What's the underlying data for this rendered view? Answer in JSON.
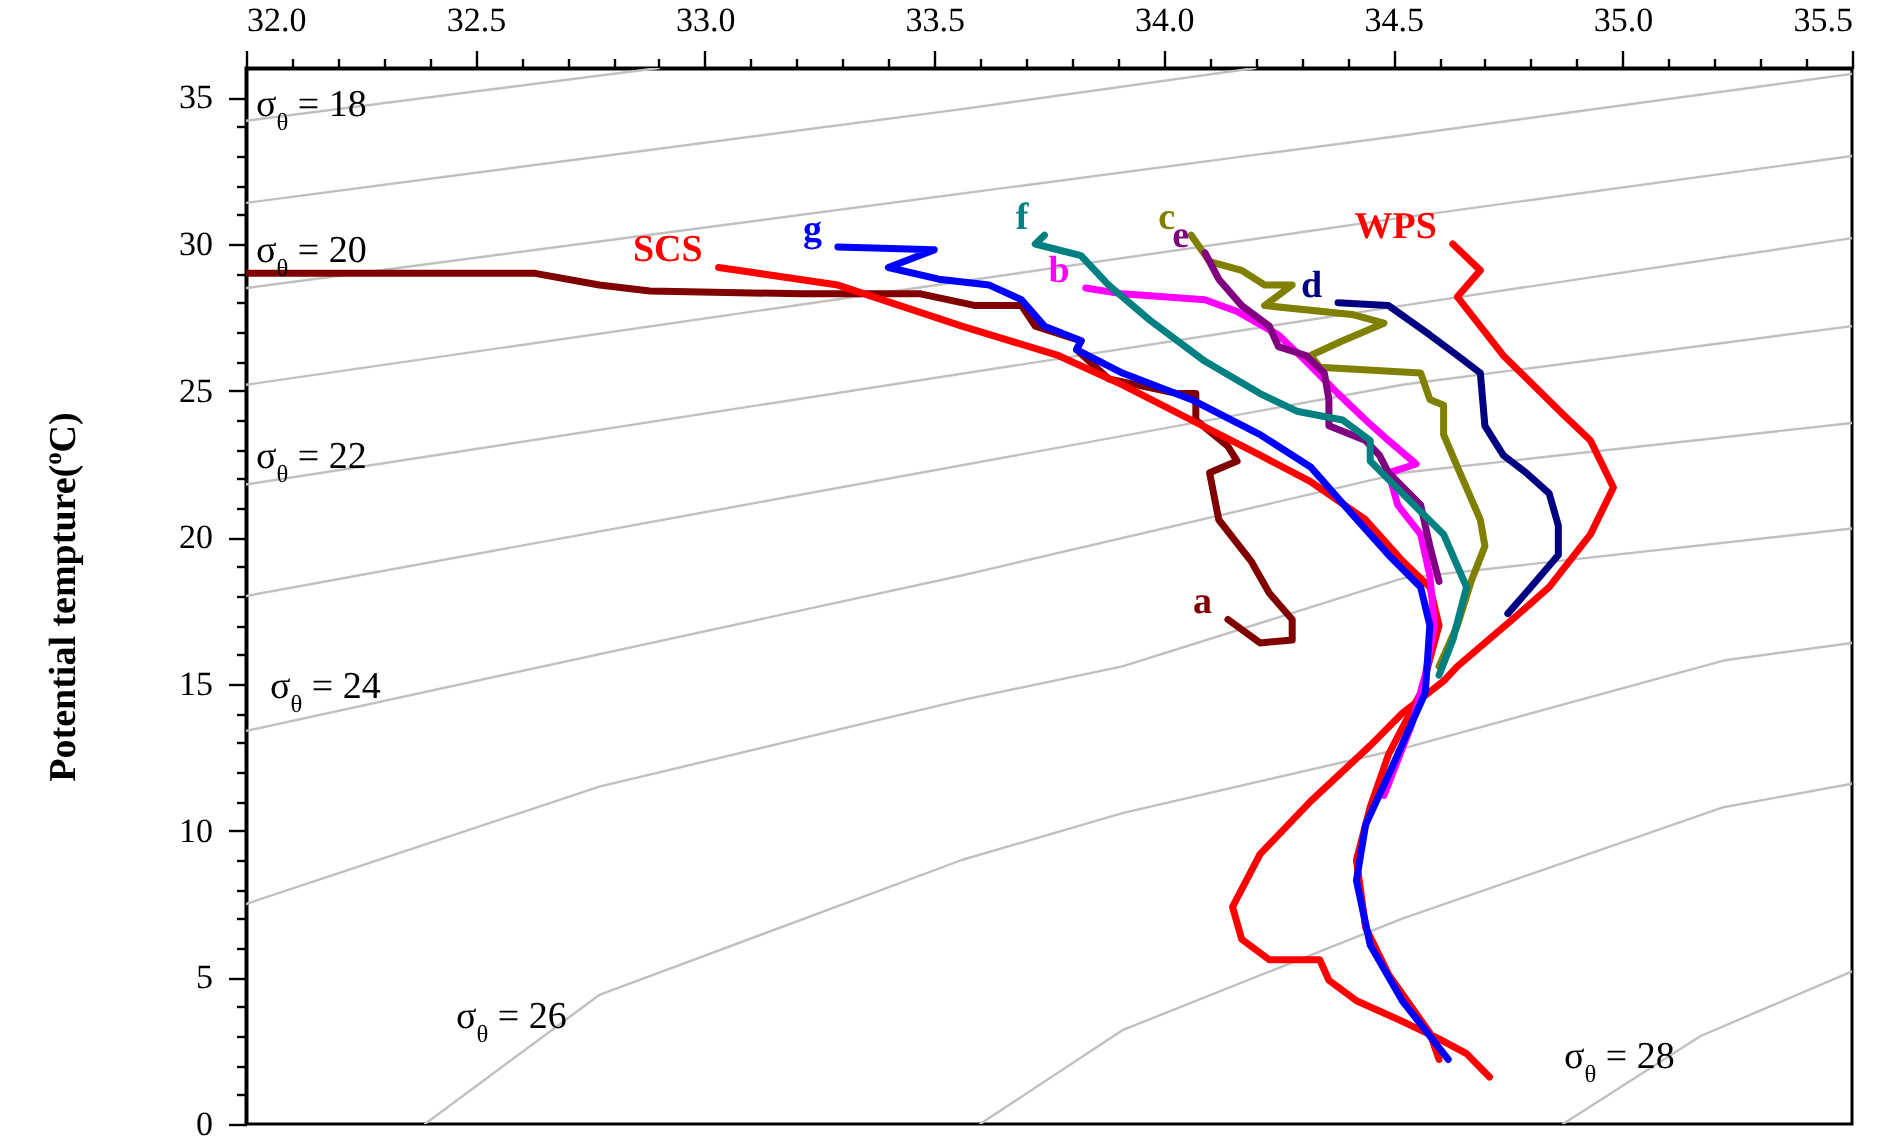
{
  "chart_data": {
    "type": "line",
    "ylabel": "Potential tempture($^{o}$C)",
    "xlim": [
      32,
      35.5
    ],
    "xticks": [
      {
        "value": 32,
        "label": "32.0"
      },
      {
        "value": 32.1,
        "label": null
      },
      {
        "value": 32.2,
        "label": null
      },
      {
        "value": 32.3,
        "label": null
      },
      {
        "value": 32.4,
        "label": null
      },
      {
        "value": 32.5,
        "label": "32.5"
      },
      {
        "value": 32.6,
        "label": null
      },
      {
        "value": 32.7,
        "label": null
      },
      {
        "value": 32.8,
        "label": null
      },
      {
        "value": 32.9,
        "label": null
      },
      {
        "value": 33,
        "label": "33.0"
      },
      {
        "value": 33.1,
        "label": null
      },
      {
        "value": 33.2,
        "label": null
      },
      {
        "value": 33.3,
        "label": null
      },
      {
        "value": 33.4,
        "label": null
      },
      {
        "value": 33.5,
        "label": "33.5"
      },
      {
        "value": 33.6,
        "label": null
      },
      {
        "value": 33.7,
        "label": null
      },
      {
        "value": 33.8,
        "label": null
      },
      {
        "value": 33.9,
        "label": null
      },
      {
        "value": 34,
        "label": "34.0"
      },
      {
        "value": 34.1,
        "label": null
      },
      {
        "value": 34.2,
        "label": null
      },
      {
        "value": 34.3,
        "label": null
      },
      {
        "value": 34.4,
        "label": null
      },
      {
        "value": 34.5,
        "label": "34.5"
      },
      {
        "value": 34.6,
        "label": null
      },
      {
        "value": 34.7,
        "label": null
      },
      {
        "value": 34.8,
        "label": null
      },
      {
        "value": 34.9,
        "label": null
      },
      {
        "value": 35,
        "label": "35.0"
      },
      {
        "value": 35.1,
        "label": null
      },
      {
        "value": 35.2,
        "label": null
      },
      {
        "value": 35.3,
        "label": null
      },
      {
        "value": 35.4,
        "label": null
      },
      {
        "value": 35.5,
        "label": "35.5"
      }
    ],
    "ylim": [
      0,
      36
    ],
    "yticks": [
      0,
      {
        "value": 1,
        "label": null
      },
      {
        "value": 2,
        "label": null
      },
      {
        "value": 3,
        "label": null
      },
      {
        "value": 4,
        "label": null
      },
      5,
      {
        "value": 6,
        "label": null
      },
      {
        "value": 7,
        "label": null
      },
      {
        "value": 8,
        "label": null
      },
      {
        "value": 9,
        "label": null
      },
      10,
      {
        "value": 11,
        "label": null
      },
      {
        "value": 12,
        "label": null
      },
      {
        "value": 13,
        "label": null
      },
      {
        "value": 14,
        "label": null
      },
      15,
      {
        "value": 16,
        "label": null
      },
      {
        "value": 17,
        "label": null
      },
      {
        "value": 18,
        "label": null
      },
      {
        "value": 19,
        "label": null
      },
      20,
      {
        "value": 21,
        "label": null
      },
      {
        "value": 22,
        "label": null
      },
      {
        "value": 23,
        "label": null
      },
      {
        "value": 24,
        "label": null
      },
      25,
      {
        "value": 26,
        "label": null
      },
      {
        "value": 27,
        "label": null
      },
      {
        "value": 28,
        "label": null
      },
      {
        "value": 29,
        "label": null
      },
      30,
      {
        "value": 31,
        "label": null
      },
      {
        "value": 32,
        "label": null
      },
      {
        "value": 33,
        "label": null
      },
      {
        "value": 34,
        "label": null
      },
      35
    ],
    "series": [
      {
        "color": "#c0c0c0",
        "x": [
          32,
          32.9
        ],
        "values": [
          34.2,
          36
        ]
      },
      {
        "color": "#c0c0c0",
        "x": [
          32,
          33.56,
          34.2
        ],
        "values": [
          31.4,
          34.6,
          36
        ]
      },
      {
        "color": "#c0c0c0",
        "x": [
          32,
          34.52,
          35.5
        ],
        "values": [
          28.5,
          33.7,
          35.8
        ]
      },
      {
        "color": "#c0c0c0",
        "x": [
          32,
          34.52,
          35.5
        ],
        "values": [
          25.2,
          30.9,
          33.0
        ]
      },
      {
        "color": "#c0c0c0",
        "x": [
          32,
          34.52,
          35.5
        ],
        "values": [
          21.8,
          27.9,
          30.2
        ]
      },
      {
        "color": "#c0c0c0",
        "x": [
          32,
          34.52,
          35.5
        ],
        "values": [
          18.0,
          25.2,
          27.2
        ]
      },
      {
        "color": "#c0c0c0",
        "x": [
          32,
          33.56,
          34.52,
          35.5
        ],
        "values": [
          13.4,
          18.7,
          22.2,
          23.9
        ]
      },
      {
        "color": "#c0c0c0",
        "x": [
          32,
          32.77,
          33.56,
          33.91,
          34.52,
          35.5
        ],
        "values": [
          7.5,
          11.5,
          14.45,
          15.6,
          18.6,
          20.3
        ]
      },
      {
        "color": "#c0c0c0",
        "x": [
          32.39,
          32.77,
          33.56,
          33.91,
          34.52,
          35.22,
          35.5
        ],
        "values": [
          0,
          4.4,
          9.0,
          10.6,
          12.8,
          15.8,
          16.4
        ]
      },
      {
        "color": "#c0c0c0",
        "x": [
          33.6,
          33.91,
          34.52,
          35.22,
          35.5
        ],
        "values": [
          0,
          3.2,
          7.0,
          10.8,
          11.6
        ]
      },
      {
        "color": "#c0c0c0",
        "x": [
          34.87,
          35.17,
          35.5
        ],
        "values": [
          0,
          3.0,
          5.2
        ]
      },
      {
        "name": "a",
        "color": "#800000",
        "x": [
          34.14,
          34.21,
          34.28,
          34.28,
          34.23,
          34.19,
          34.12,
          34.1,
          34.16,
          34.14,
          34.07,
          34.07,
          34.03,
          33.88,
          33.81,
          33.82,
          33.72,
          33.69,
          33.59,
          33.47,
          33.21,
          32.88,
          32.77,
          32.63,
          32.0
        ],
        "values": [
          17.2,
          16.4,
          16.5,
          17.2,
          18.1,
          19.2,
          20.6,
          22.2,
          22.6,
          23.1,
          24.0,
          24.9,
          24.9,
          25.4,
          26.4,
          26.7,
          27.2,
          27.9,
          27.9,
          28.3,
          28.3,
          28.4,
          28.6,
          29.0,
          29.0
        ]
      },
      {
        "name": "SCS",
        "color": "#ff0000",
        "x": [
          33.03,
          33.29,
          33.56,
          33.77,
          33.91,
          34.06,
          34.21,
          34.32,
          34.44,
          34.52,
          34.58,
          34.6,
          34.56,
          34.49,
          34.45,
          34.42,
          34.44,
          34.49,
          34.58,
          34.6
        ],
        "values": [
          29.2,
          28.6,
          27.2,
          26.2,
          25.2,
          24.0,
          22.8,
          21.9,
          20.6,
          19.2,
          18.3,
          17.0,
          14.7,
          12.6,
          10.8,
          9.0,
          6.7,
          5.1,
          3.1,
          2.2
        ]
      },
      {
        "name": "WPS",
        "color": "#ff0000",
        "x": [
          34.63,
          34.69,
          34.64,
          34.74,
          34.87,
          34.93,
          34.98,
          34.93,
          34.84,
          34.76,
          34.64,
          34.61,
          34.52,
          34.45,
          34.32,
          34.21,
          34.15,
          34.17,
          34.23,
          34.34,
          34.36,
          34.42,
          34.52,
          34.6,
          34.66,
          34.71
        ],
        "values": [
          30.0,
          29.1,
          28.2,
          26.2,
          24.2,
          23.3,
          21.7,
          20.1,
          18.3,
          17.2,
          15.6,
          15.1,
          14.0,
          12.9,
          11.0,
          9.2,
          7.4,
          6.3,
          5.6,
          5.6,
          4.9,
          4.2,
          3.5,
          2.9,
          2.4,
          1.6
        ]
      },
      {
        "name": "b",
        "color": "#ff00ff",
        "x": [
          33.83,
          33.91,
          34.09,
          34.16,
          34.25,
          34.31,
          34.38,
          34.44,
          34.49,
          34.55,
          34.49,
          34.51,
          34.56,
          34.58,
          34.59,
          34.57,
          34.54,
          34.48
        ],
        "values": [
          28.5,
          28.3,
          28.1,
          27.7,
          26.9,
          26.0,
          24.9,
          24.0,
          23.3,
          22.5,
          22.2,
          21.1,
          20.1,
          18.7,
          17.0,
          15.3,
          13.6,
          11.2
        ]
      },
      {
        "name": "c",
        "color": "#808000",
        "x": [
          34.06,
          34.1,
          34.17,
          34.22,
          34.28,
          34.22,
          34.41,
          34.48,
          34.39,
          34.32,
          34.34,
          34.56,
          34.58,
          34.61,
          34.61,
          34.64,
          34.69,
          34.7,
          34.67,
          34.64,
          34.6
        ],
        "values": [
          30.3,
          29.4,
          29.1,
          28.6,
          28.6,
          27.9,
          27.6,
          27.3,
          26.7,
          26.2,
          25.8,
          25.6,
          24.7,
          24.5,
          23.5,
          22.4,
          20.6,
          19.7,
          18.5,
          17.0,
          15.6
        ]
      },
      {
        "name": "e",
        "color": "#800080",
        "x": [
          34.09,
          34.12,
          34.17,
          34.23,
          34.25,
          34.31,
          34.35,
          34.36,
          34.36,
          34.44,
          34.47,
          34.49,
          34.56,
          34.58,
          34.6
        ],
        "values": [
          29.7,
          28.8,
          27.9,
          27.2,
          26.5,
          26.2,
          25.6,
          24.7,
          23.8,
          23.3,
          22.8,
          22.2,
          21.1,
          19.7,
          18.5
        ]
      },
      {
        "name": "d",
        "color": "#000080",
        "x": [
          34.38,
          34.49,
          34.58,
          34.64,
          34.69,
          34.7,
          34.74,
          34.79,
          34.84,
          34.86,
          34.86,
          34.8,
          34.75
        ],
        "values": [
          28.0,
          27.9,
          26.9,
          26.2,
          25.6,
          23.8,
          22.8,
          22.2,
          21.5,
          20.4,
          19.4,
          18.3,
          17.4
        ]
      },
      {
        "name": "f",
        "color": "#008080",
        "x": [
          33.74,
          33.72,
          33.82,
          33.88,
          33.97,
          34.09,
          34.21,
          34.29,
          34.39,
          34.45,
          34.45,
          34.52,
          34.61,
          34.66,
          34.63,
          34.6
        ],
        "values": [
          30.3,
          30.0,
          29.6,
          28.6,
          27.4,
          26.0,
          24.9,
          24.3,
          24.0,
          23.3,
          22.6,
          21.5,
          20.1,
          18.3,
          16.5,
          15.3
        ]
      },
      {
        "name": "g",
        "color": "#0000ff",
        "x": [
          33.29,
          33.5,
          33.4,
          33.51,
          33.62,
          33.69,
          33.74,
          33.82,
          33.81,
          33.91,
          34.06,
          34.21,
          34.32,
          34.41,
          34.49,
          34.56,
          34.58,
          34.57,
          34.49,
          34.44,
          34.42,
          34.45,
          34.52,
          34.62
        ],
        "values": [
          29.9,
          29.8,
          29.2,
          28.8,
          28.6,
          28.1,
          27.2,
          26.7,
          26.4,
          25.6,
          24.7,
          23.5,
          22.4,
          20.8,
          19.4,
          18.3,
          17.0,
          14.7,
          11.9,
          10.2,
          8.3,
          6.1,
          4.2,
          2.2
        ]
      }
    ],
    "annotations": [
      "σ$_{θ}$ = 18",
      "σ$_{θ}$ = 20",
      "σ$_{θ}$ = 22",
      "σ$_{θ}$ = 24",
      "σ$_{θ}$ = 26",
      "σ$_{θ}$ = 28"
    ]
  }
}
